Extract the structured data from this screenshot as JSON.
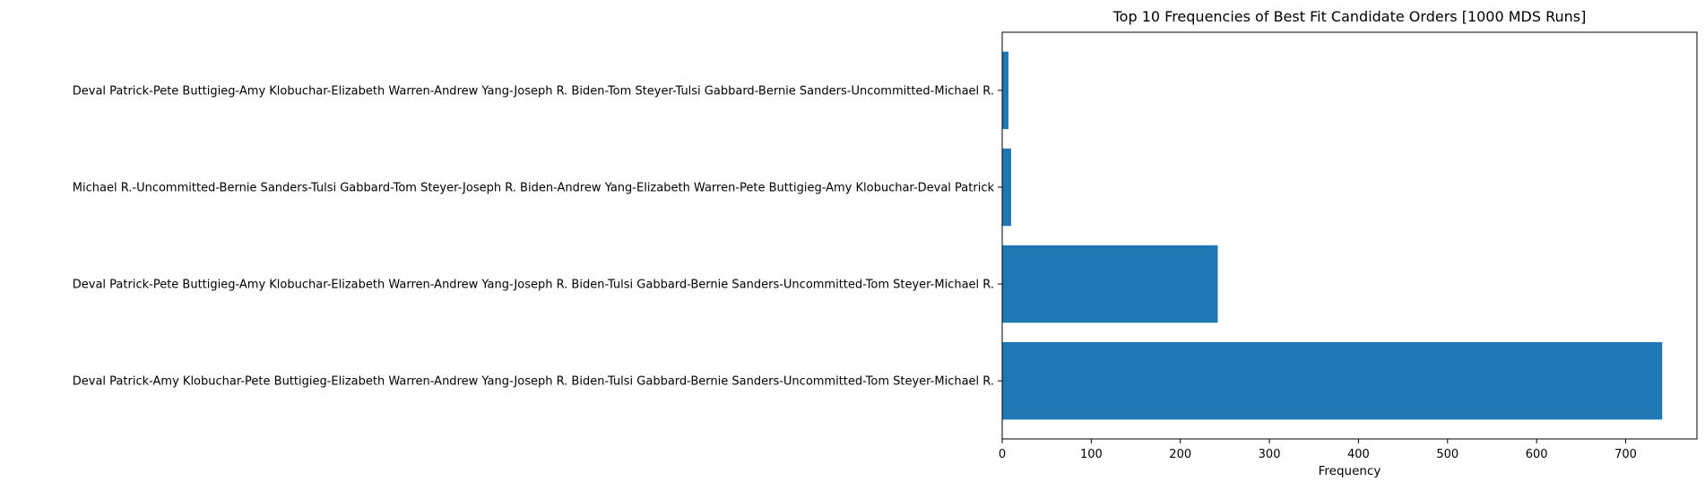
{
  "chart_data": {
    "type": "bar",
    "orientation": "horizontal",
    "title": "Top 10 Frequencies of Best Fit Candidate Orders [1000 MDS Runs]",
    "xlabel": "Frequency",
    "ylabel": "",
    "xlim": [
      0,
      780
    ],
    "xticks": [
      0,
      100,
      200,
      300,
      400,
      500,
      600,
      700
    ],
    "grid": false,
    "color": "#1f77b4",
    "categories": [
      "Deval Patrick-Amy Klobuchar-Pete Buttigieg-Elizabeth Warren-Andrew Yang-Joseph R. Biden-Tulsi Gabbard-Bernie Sanders-Uncommitted-Tom Steyer-Michael R.",
      "Deval Patrick-Pete Buttigieg-Amy Klobuchar-Elizabeth Warren-Andrew Yang-Joseph R. Biden-Tulsi Gabbard-Bernie Sanders-Uncommitted-Tom Steyer-Michael R.",
      "Michael R.-Uncommitted-Bernie Sanders-Tulsi Gabbard-Tom Steyer-Joseph R. Biden-Andrew Yang-Elizabeth Warren-Pete Buttigieg-Amy Klobuchar-Deval Patrick",
      "Deval Patrick-Pete Buttigieg-Amy Klobuchar-Elizabeth Warren-Andrew Yang-Joseph R. Biden-Tom Steyer-Tulsi Gabbard-Bernie Sanders-Uncommitted-Michael R."
    ],
    "values": [
      741,
      242,
      10,
      7
    ]
  }
}
